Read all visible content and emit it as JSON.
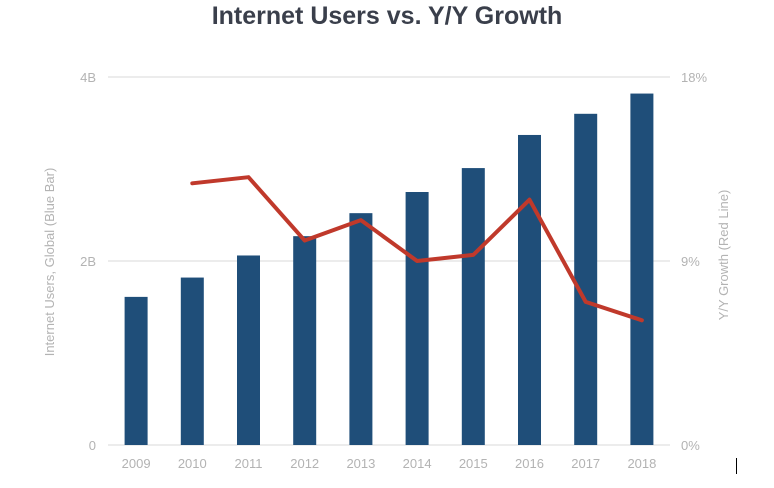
{
  "chart_data": {
    "type": "bar+line",
    "title": "Internet Users vs. Y/Y Growth",
    "categories": [
      "2009",
      "2010",
      "2011",
      "2012",
      "2013",
      "2014",
      "2015",
      "2016",
      "2017",
      "2018"
    ],
    "series": [
      {
        "name": "Internet Users, Global (Blue Bar)",
        "type": "bar",
        "axis": "left",
        "values": [
          1.61,
          1.82,
          2.06,
          2.27,
          2.52,
          2.75,
          3.01,
          3.37,
          3.6,
          3.82
        ]
      },
      {
        "name": "Y/Y Growth (Red Line)",
        "type": "line",
        "axis": "right",
        "values": [
          null,
          12.8,
          13.1,
          10.0,
          11.0,
          9.0,
          9.3,
          12.0,
          7.0,
          6.1
        ]
      }
    ],
    "yleft": {
      "label": "Internet Users, Global (Blue Bar)",
      "ylim": [
        0,
        4
      ],
      "ticks": [
        "0",
        "2B",
        "4B"
      ],
      "tick_values": [
        0,
        2,
        4
      ]
    },
    "yright": {
      "label": "Y/Y Growth (Red Line)",
      "ylim": [
        0,
        18
      ],
      "ticks": [
        "0%",
        "9%",
        "18%"
      ],
      "tick_values": [
        0,
        9,
        18
      ]
    },
    "colors": {
      "bar": "#1f4e79",
      "line": "#c0392b",
      "grid": "#d9d9d9",
      "axis_text": "#b3b3b3",
      "title": "#3a3f4b"
    },
    "grid": true,
    "legend": "none"
  }
}
